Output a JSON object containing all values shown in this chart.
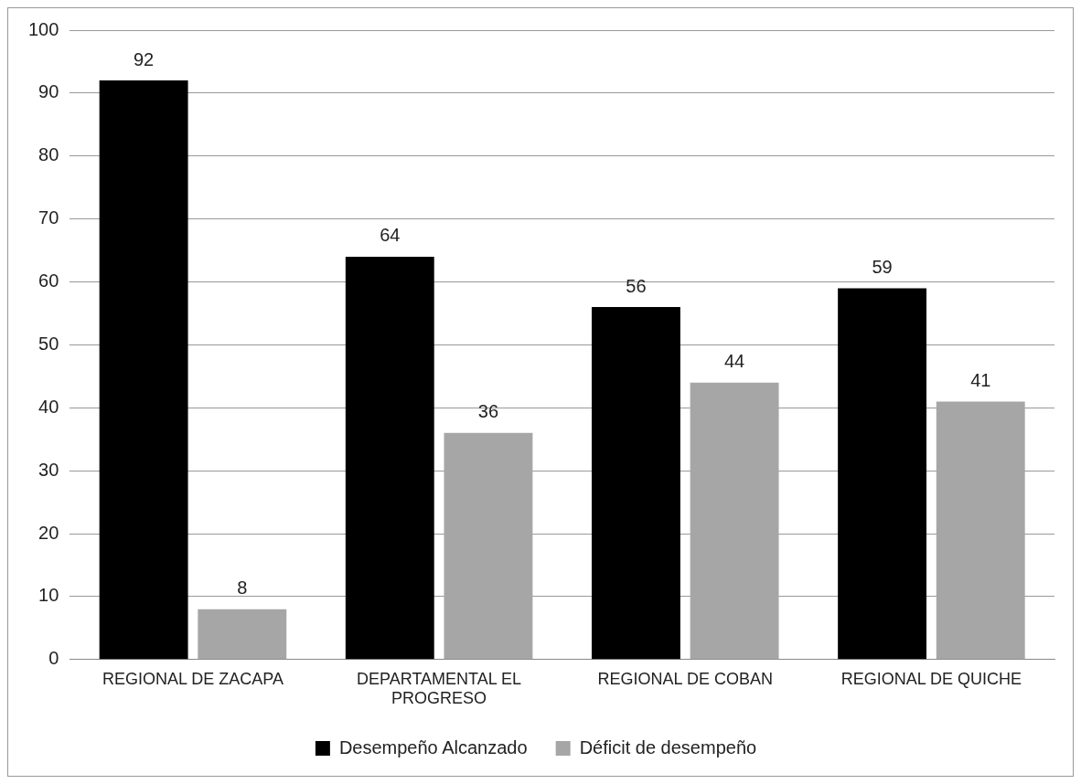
{
  "chart_data": {
    "type": "bar",
    "categories": [
      "REGIONAL DE ZACAPA",
      "DEPARTAMENTAL EL PROGRESO",
      "REGIONAL DE COBAN",
      "REGIONAL DE QUICHE"
    ],
    "series": [
      {
        "name": "Desempeño Alcanzado",
        "color": "#000000",
        "values": [
          92,
          64,
          56,
          59
        ]
      },
      {
        "name": "Déficit de desempeño",
        "color": "#a6a6a6",
        "values": [
          8,
          36,
          44,
          41
        ]
      }
    ],
    "ylim": [
      0,
      100
    ],
    "yticks": [
      0,
      10,
      20,
      30,
      40,
      50,
      60,
      70,
      80,
      90,
      100
    ],
    "grid": "y",
    "legend": "bottom",
    "data_labels": true
  }
}
